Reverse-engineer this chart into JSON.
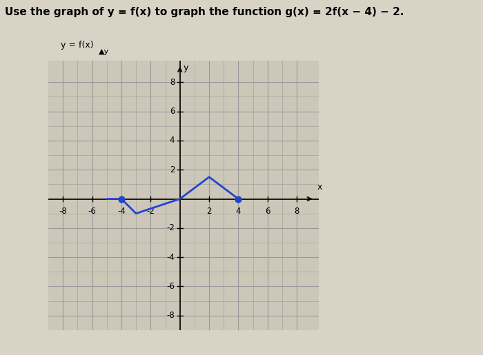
{
  "title_text": "Use the graph of y = f(x) to graph the function g(x) = 2f(x − 4) − 2.",
  "ylabel_label": "y = f(x)",
  "y_axis_label": "y",
  "x_axis_label": "x",
  "xlim": [
    -9,
    9.5
  ],
  "ylim": [
    -9,
    9.5
  ],
  "xtick_vals": [
    -8,
    -6,
    -4,
    -2,
    2,
    4,
    6,
    8
  ],
  "ytick_vals": [
    -8,
    -6,
    -4,
    -2,
    2,
    4,
    6,
    8
  ],
  "grid_color": "#999999",
  "background_color": "#d9d3c5",
  "plot_bg_color": "#ccc7b8",
  "line_color": "#2244cc",
  "line_width": 2.0,
  "curve_x": [
    -5,
    -4,
    -3,
    0,
    2,
    4
  ],
  "curve_y": [
    0,
    0,
    -1,
    0,
    1.5,
    0
  ],
  "dot_points": [
    [
      -4,
      0
    ],
    [
      4,
      0
    ]
  ],
  "dot_color": "#2244cc",
  "dot_size": 40,
  "title_fontsize": 11,
  "tick_fontsize": 8.5,
  "label_fontsize": 9
}
